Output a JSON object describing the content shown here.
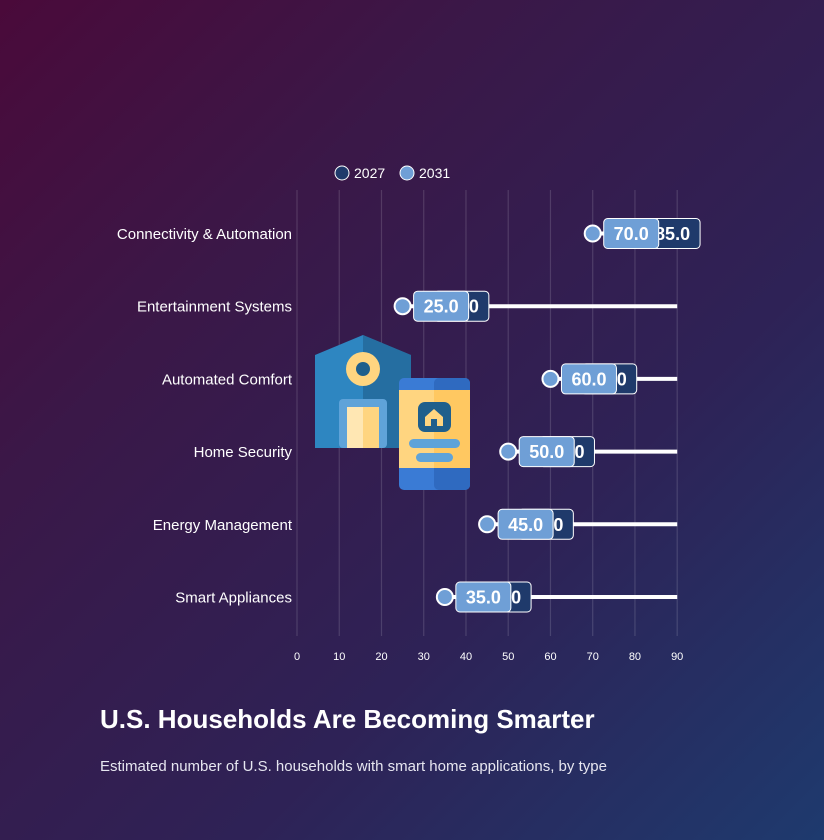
{
  "title": "U.S. Households Are Becoming Smarter",
  "subtitle": "Estimated number of U.S. households with smart home applications, by type",
  "icon": "smart-home-house-phone-icon",
  "colors": {
    "series_2027": "#1f3a6b",
    "series_2031": "#6f9fd6",
    "bar": "#ffffff",
    "house": "#2e86c1",
    "phone": "#ffd580"
  },
  "chart_data": {
    "type": "bar",
    "orientation": "horizontal",
    "categories": [
      "Connectivity & Automation",
      "Entertainment Systems",
      "Automated Comfort",
      "Home Security",
      "Energy Management",
      "Smart Appliances"
    ],
    "series": [
      {
        "name": "2027",
        "values": [
          85.0,
          35.0,
          70.0,
          60.0,
          55.0,
          45.0
        ]
      },
      {
        "name": "2031",
        "values": [
          70.0,
          25.0,
          60.0,
          50.0,
          45.0,
          35.0
        ]
      }
    ],
    "bar_end": 90,
    "xlim": [
      0,
      90
    ],
    "xticks": [
      "0",
      "10",
      "20",
      "30",
      "40",
      "50",
      "60",
      "70",
      "80",
      "90"
    ],
    "grid": true,
    "legend_position": "top-center"
  }
}
